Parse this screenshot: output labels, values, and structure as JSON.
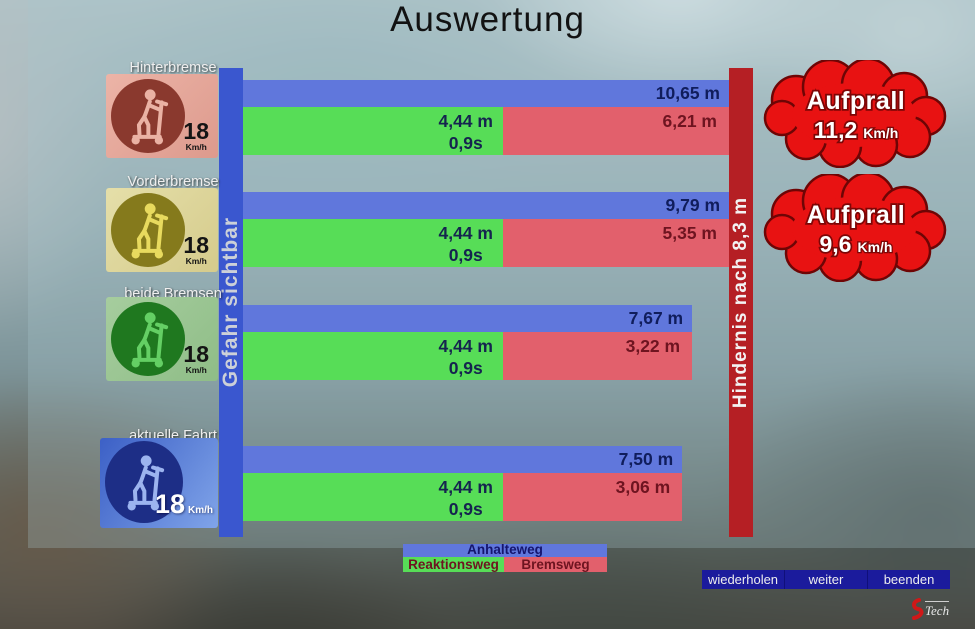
{
  "title": "Auswertung",
  "axis": {
    "danger_label": "Gefahr sichtbar",
    "obstacle_label": "Hindernis nach 8,3 m"
  },
  "legend": {
    "anhalteweg": "Anhalteweg",
    "reaktionsweg": "Reaktionsweg",
    "bremsweg": "Bremsweg"
  },
  "nav": {
    "repeat": "wiederholen",
    "next": "weiter",
    "quit": "beenden"
  },
  "logo_text": "Tech",
  "colors": {
    "bar_anhalteweg_blue": "#6077dc",
    "bar_reaktionsweg_green": "#57dd57",
    "bar_bremsweg_red": "#e2606c",
    "danger_bar_blue": "#3a57cf",
    "obstacle_bar_red": "#b51f24",
    "cloud_red": "#e81212",
    "nav_navy": "#1b1b9c"
  },
  "chart_data": {
    "type": "bar",
    "orientation": "horizontal",
    "x_max_m": 8.3,
    "obstacle_distance_m": 8.3,
    "rows": [
      {
        "label": "Hinterbremse",
        "speed_value": "18",
        "speed_unit": "Km/h",
        "anhalteweg_m": 10.65,
        "reaktionsweg_m": 4.44,
        "reaktionszeit_s": 0.9,
        "bremsweg_m": 6.21,
        "anhalteweg_label": "10,65 m",
        "reaktionsweg_label": "4,44 m",
        "reaktionszeit_label": "0,9s",
        "bremsweg_label": "6,21 m",
        "aufprall": {
          "title": "Aufprall",
          "value": "11,2",
          "unit": "Km/h"
        }
      },
      {
        "label": "Vorderbremse",
        "speed_value": "18",
        "speed_unit": "Km/h",
        "anhalteweg_m": 9.79,
        "reaktionsweg_m": 4.44,
        "reaktionszeit_s": 0.9,
        "bremsweg_m": 5.35,
        "anhalteweg_label": "9,79 m",
        "reaktionsweg_label": "4,44 m",
        "reaktionszeit_label": "0,9s",
        "bremsweg_label": "5,35 m",
        "aufprall": {
          "title": "Aufprall",
          "value": "9,6",
          "unit": "Km/h"
        }
      },
      {
        "label": "beide Bremsen",
        "speed_value": "18",
        "speed_unit": "Km/h",
        "anhalteweg_m": 7.67,
        "reaktionsweg_m": 4.44,
        "reaktionszeit_s": 0.9,
        "bremsweg_m": 3.22,
        "anhalteweg_label": "7,67 m",
        "reaktionsweg_label": "4,44 m",
        "reaktionszeit_label": "0,9s",
        "bremsweg_label": "3,22 m",
        "aufprall": null
      },
      {
        "label": "aktuelle Fahrt",
        "speed_value": "18",
        "speed_unit": "Km/h",
        "anhalteweg_m": 7.5,
        "reaktionsweg_m": 4.44,
        "reaktionszeit_s": 0.9,
        "bremsweg_m": 3.06,
        "anhalteweg_label": "7,50 m",
        "reaktionsweg_label": "4,44 m",
        "reaktionszeit_label": "0,9s",
        "bremsweg_label": "3,06 m",
        "aufprall": null
      }
    ]
  }
}
